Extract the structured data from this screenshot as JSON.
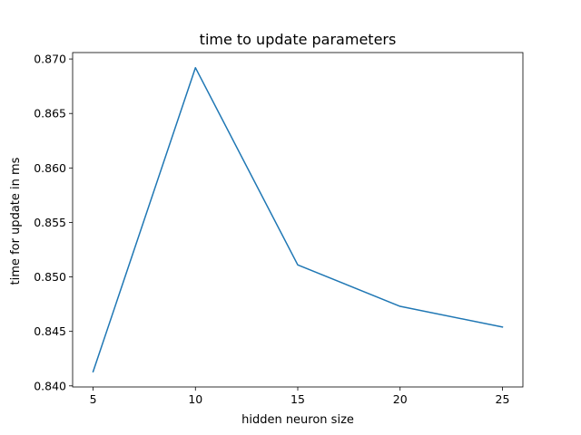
{
  "chart_data": {
    "type": "line",
    "title": "time to update parameters",
    "xlabel": "hidden neuron size",
    "ylabel": "time for update in ms",
    "x": [
      5,
      10,
      15,
      20,
      25
    ],
    "series": [
      {
        "values": [
          0.8413,
          0.8692,
          0.8511,
          0.8473,
          0.8454
        ],
        "color": "#1f77b4"
      }
    ],
    "xticks": [
      5,
      10,
      15,
      20,
      25
    ],
    "xtick_labels": [
      "5",
      "10",
      "15",
      "20",
      "25"
    ],
    "yticks": [
      0.84,
      0.845,
      0.85,
      0.855,
      0.86,
      0.865,
      0.87
    ],
    "ytick_labels": [
      "0.840",
      "0.845",
      "0.850",
      "0.855",
      "0.860",
      "0.865",
      "0.870"
    ],
    "xlim": [
      4.0,
      26.0
    ],
    "ylim": [
      0.8399,
      0.87059
    ],
    "grid": false,
    "legend": false
  }
}
